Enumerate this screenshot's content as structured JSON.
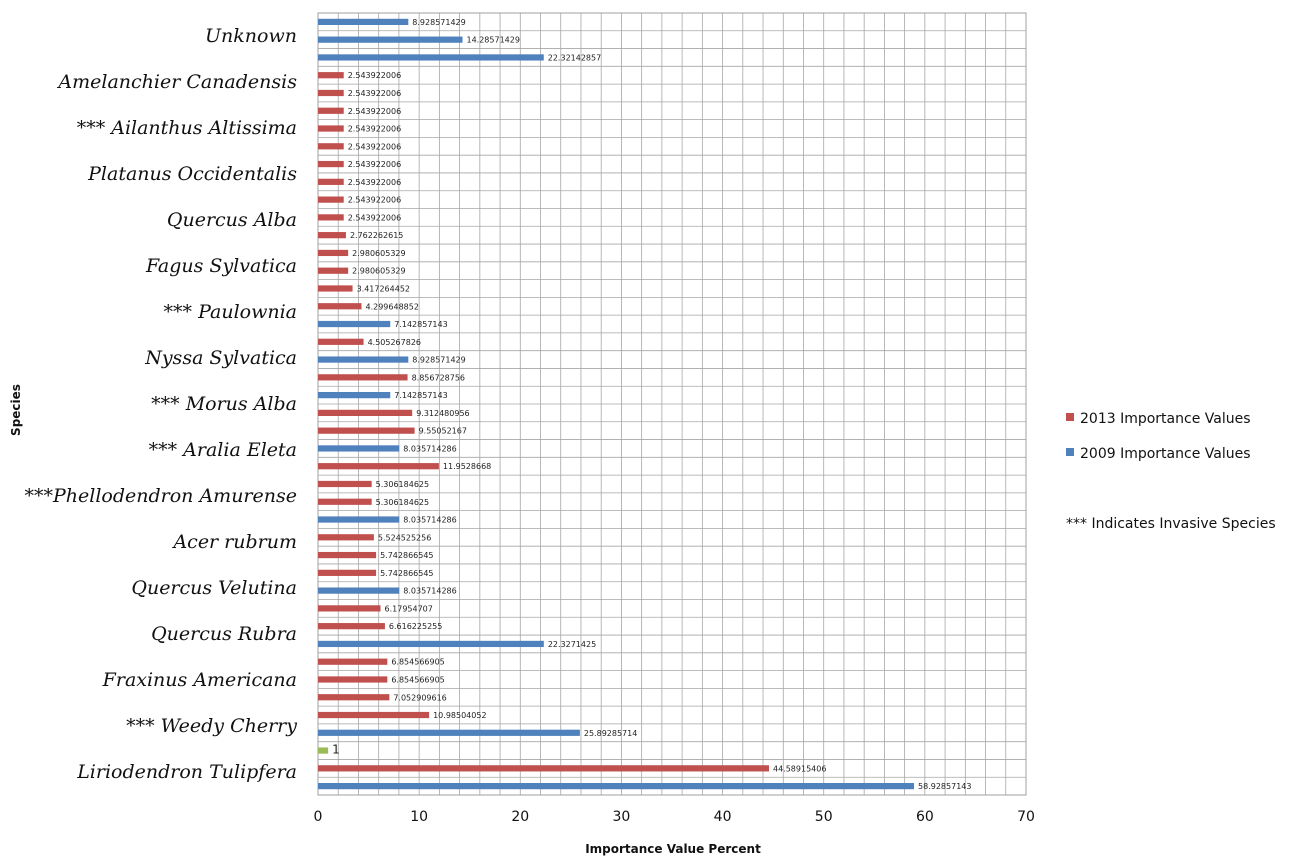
{
  "chart_data": {
    "type": "bar",
    "orientation": "horizontal",
    "title": "",
    "xlabel": "Importance Value Percent",
    "ylabel": "Species",
    "xlim": [
      0,
      70
    ],
    "xticks": [
      0,
      10,
      20,
      30,
      40,
      50,
      60,
      70
    ],
    "grid": true,
    "legend_position": "right",
    "legend_note": "*** Indicates Invasive Species",
    "colors": {
      "2013": "#c0504d",
      "2009": "#4f81bd",
      "other": "#9bbb59"
    },
    "species_labels": [
      "Liriodendron Tulipfera",
      "*** Weedy Cherry",
      "Fraxinus Americana",
      "Quercus Rubra",
      "Quercus Velutina",
      "Acer rubrum",
      "***Phellodendron Amurense",
      "*** Aralia Eleta",
      "*** Morus Alba",
      "Nyssa Sylvatica",
      "*** Paulownia",
      "Fagus Sylvatica",
      "Quercus Alba",
      "Platanus Occidentalis",
      "*** Ailanthus Altissima",
      "Amelanchier Canadensis",
      "Unknown"
    ],
    "series": [
      {
        "name": "2013 Importance Values",
        "color": "#c0504d"
      },
      {
        "name": "2009 Importance Values",
        "color": "#4f81bd"
      }
    ],
    "bars": [
      {
        "series": "2009",
        "value": 58.92857143,
        "label": "58.92857143"
      },
      {
        "series": "2013",
        "value": 44.58915406,
        "label": "44.58915406"
      },
      {
        "series": "other",
        "value": 1,
        "label": "1"
      },
      {
        "series": "2009",
        "value": 25.89285714,
        "label": "25.89285714"
      },
      {
        "series": "2013",
        "value": 10.98504052,
        "label": "10.98504052"
      },
      {
        "series": "2013",
        "value": 7.052909616,
        "label": "7.052909616"
      },
      {
        "series": "2013",
        "value": 6.854566905,
        "label": "6.854566905"
      },
      {
        "series": "2013",
        "value": 6.854566905,
        "label": "6.854566905"
      },
      {
        "series": "2009",
        "value": 22.3271425,
        "label": "22.3271425"
      },
      {
        "series": "2013",
        "value": 6.616225255,
        "label": "6.616225255"
      },
      {
        "series": "2013",
        "value": 6.17954707,
        "label": "6.17954707"
      },
      {
        "series": "2009",
        "value": 8.035714286,
        "label": "8.035714286"
      },
      {
        "series": "2013",
        "value": 5.742866545,
        "label": "5.742866545"
      },
      {
        "series": "2013",
        "value": 5.742866545,
        "label": "5.742866545"
      },
      {
        "series": "2013",
        "value": 5.524525256,
        "label": "5.524525256"
      },
      {
        "series": "2009",
        "value": 8.035714286,
        "label": "8.035714286"
      },
      {
        "series": "2013",
        "value": 5.306184625,
        "label": "5.306184625"
      },
      {
        "series": "2013",
        "value": 5.306184625,
        "label": "5.306184625"
      },
      {
        "series": "2013",
        "value": 11.9528668,
        "label": "11.9528668"
      },
      {
        "series": "2009",
        "value": 8.035714286,
        "label": "8.035714286"
      },
      {
        "series": "2013",
        "value": 9.55052167,
        "label": "9.55052167"
      },
      {
        "series": "2013",
        "value": 9.312480956,
        "label": "9.312480956"
      },
      {
        "series": "2009",
        "value": 7.142857143,
        "label": "7.142857143"
      },
      {
        "series": "2013",
        "value": 8.856728756,
        "label": "8.856728756"
      },
      {
        "series": "2009",
        "value": 8.928571429,
        "label": "8.928571429"
      },
      {
        "series": "2013",
        "value": 4.505267826,
        "label": "4.505267826"
      },
      {
        "series": "2009",
        "value": 7.142857143,
        "label": "7.142857143"
      },
      {
        "series": "2013",
        "value": 4.299648852,
        "label": "4.299648852"
      },
      {
        "series": "2013",
        "value": 3.417264452,
        "label": "3.417264452"
      },
      {
        "series": "2013",
        "value": 2.980605329,
        "label": "2.980605329"
      },
      {
        "series": "2013",
        "value": 2.980605329,
        "label": "2.980605329"
      },
      {
        "series": "2013",
        "value": 2.762262615,
        "label": "2.762262615"
      },
      {
        "series": "2013",
        "value": 2.543922006,
        "label": "2.543922006"
      },
      {
        "series": "2013",
        "value": 2.543922006,
        "label": "2.543922006"
      },
      {
        "series": "2013",
        "value": 2.543922006,
        "label": "2.543922006"
      },
      {
        "series": "2013",
        "value": 2.543922006,
        "label": "2.543922006"
      },
      {
        "series": "2013",
        "value": 2.543922006,
        "label": "2.543922006"
      },
      {
        "series": "2013",
        "value": 2.543922006,
        "label": "2.543922006"
      },
      {
        "series": "2013",
        "value": 2.543922006,
        "label": "2.543922006"
      },
      {
        "series": "2013",
        "value": 2.543922006,
        "label": "2.543922006"
      },
      {
        "series": "2013",
        "value": 2.543922006,
        "label": "2.543922006"
      },
      {
        "series": "2009",
        "value": 22.32142857,
        "label": "22.32142857"
      },
      {
        "series": "2009",
        "value": 14.28571429,
        "label": "14.28571429"
      },
      {
        "series": "2009",
        "value": 8.928571429,
        "label": "8.928571429"
      }
    ]
  }
}
